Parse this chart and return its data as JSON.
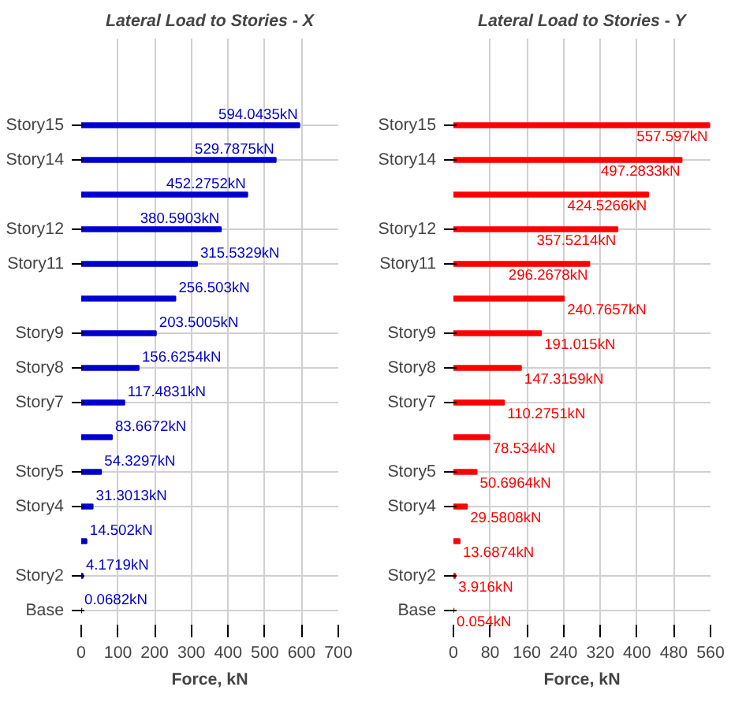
{
  "chart_data": [
    {
      "type": "bar",
      "orientation": "horizontal",
      "title": "Lateral Load to Stories - X",
      "xlabel": "Force, kN",
      "categories": [
        "Story15",
        "Story14",
        null,
        "Story12",
        "Story11",
        null,
        "Story9",
        "Story8",
        "Story7",
        null,
        "Story5",
        "Story4",
        null,
        "Story2",
        "Base"
      ],
      "series": [
        {
          "color": "#0000cc",
          "values": [
            594.0435,
            529.7875,
            452.2752,
            380.5903,
            315.5329,
            256.503,
            203.5005,
            156.6254,
            117.4831,
            83.6672,
            54.3297,
            31.3013,
            14.502,
            4.1719,
            0.0682
          ],
          "value_labels": [
            "594.0435kN",
            "529.7875kN",
            "452.2752kN",
            "380.5903kN",
            "315.5329kN",
            "256.503kN",
            "203.5005kN",
            "156.6254kN",
            "117.4831kN",
            "83.6672kN",
            "54.3297kN",
            "31.3013kN",
            "14.502kN",
            "4.1719kN",
            "0.0682kN"
          ]
        }
      ],
      "xlim": [
        0,
        700
      ],
      "xticks": [
        0,
        100,
        200,
        300,
        400,
        500,
        600,
        700
      ],
      "grid": true
    },
    {
      "type": "bar",
      "orientation": "horizontal",
      "title": "Lateral Load to Stories - Y",
      "xlabel": "Force, kN",
      "categories": [
        "Story15",
        "Story14",
        null,
        "Story12",
        "Story11",
        null,
        "Story9",
        "Story8",
        "Story7",
        null,
        "Story5",
        "Story4",
        null,
        "Story2",
        "Base"
      ],
      "series": [
        {
          "color": "#ff0000",
          "values": [
            557.597,
            497.2833,
            424.5266,
            357.5214,
            296.2678,
            240.7657,
            191.015,
            147.3159,
            110.2751,
            78.534,
            50.6964,
            29.5808,
            13.6874,
            3.916,
            0.054
          ],
          "value_labels": [
            "557.597kN",
            "497.2833kN",
            "424.5266kN",
            "357.5214kN",
            "296.2678kN",
            "240.7657kN",
            "191.015kN",
            "147.3159kN",
            "110.2751kN",
            "78.534kN",
            "50.6964kN",
            "29.5808kN",
            "13.6874kN",
            "3.916kN",
            "0.054kN"
          ]
        }
      ],
      "xlim": [
        0,
        560
      ],
      "xticks": [
        0,
        80,
        160,
        240,
        320,
        400,
        480,
        560
      ],
      "grid": true
    }
  ]
}
